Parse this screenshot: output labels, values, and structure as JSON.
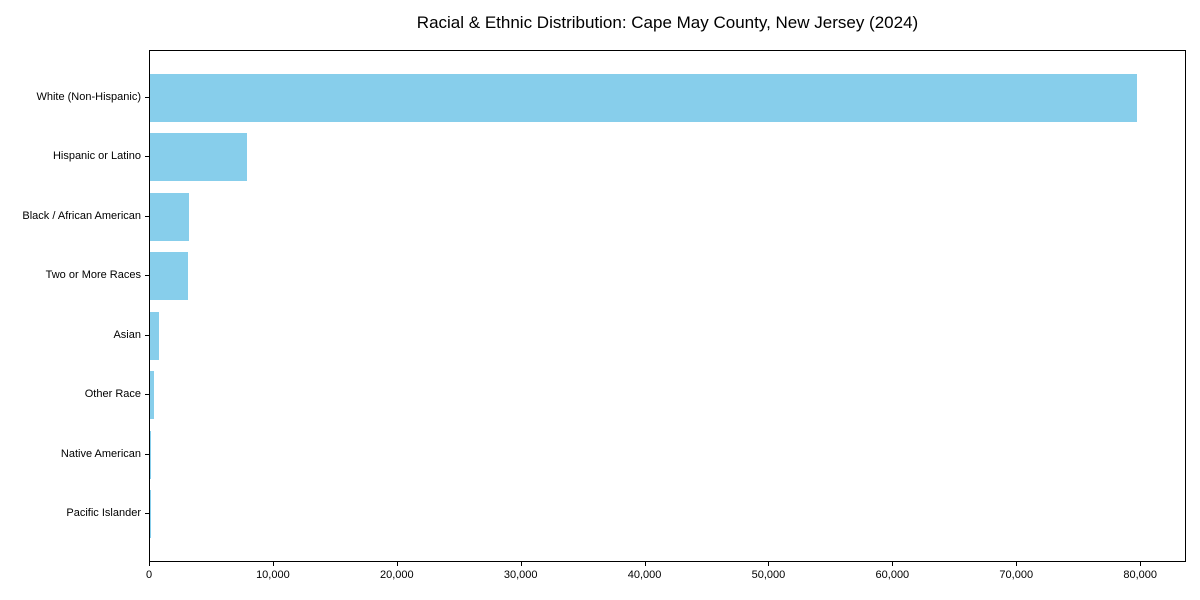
{
  "chart_data": {
    "type": "bar",
    "orientation": "horizontal",
    "title": "Racial & Ethnic Distribution: Cape May County, New Jersey (2024)",
    "categories": [
      "White (Non-Hispanic)",
      "Hispanic or Latino",
      "Black / African American",
      "Two or More Races",
      "Asian",
      "Other Race",
      "Native American",
      "Pacific Islander"
    ],
    "values": [
      79700,
      7800,
      3150,
      3070,
      700,
      360,
      40,
      10
    ],
    "xlabel": "",
    "ylabel": "",
    "xlim": [
      0,
      83700
    ],
    "x_ticks": [
      0,
      10000,
      20000,
      30000,
      40000,
      50000,
      60000,
      70000,
      80000
    ],
    "x_tick_labels": [
      "0",
      "10,000",
      "20,000",
      "30,000",
      "40,000",
      "50,000",
      "60,000",
      "70,000",
      "80,000"
    ],
    "bar_color": "#87CEEB",
    "axis_color": "#000000",
    "grid": false,
    "legend": "none"
  }
}
